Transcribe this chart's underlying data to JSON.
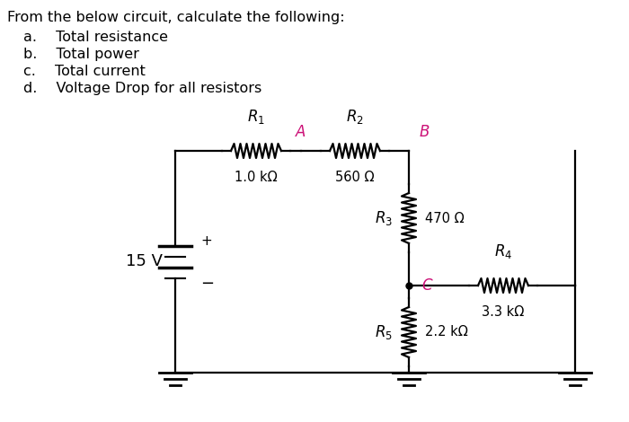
{
  "title_text": "From the below circuit, calculate the following:",
  "items": [
    "a.  Total resistance",
    "b.  Total power",
    "c.  Total current",
    "d.  Voltage Drop for all resistors"
  ],
  "bg_color": "#ffffff",
  "text_color": "#000000",
  "magenta_color": "#cc1177",
  "component_color": "#000000",
  "font_size_text": 11.5,
  "font_size_label": 11,
  "font_size_value": 10.5,
  "source_label": "15 V",
  "R1_value": "1.0 kΩ",
  "R2_value": "560 Ω",
  "R3_value": "470 Ω",
  "R4_value": "3.3 kΩ",
  "R5_value": "2.2 kΩ"
}
